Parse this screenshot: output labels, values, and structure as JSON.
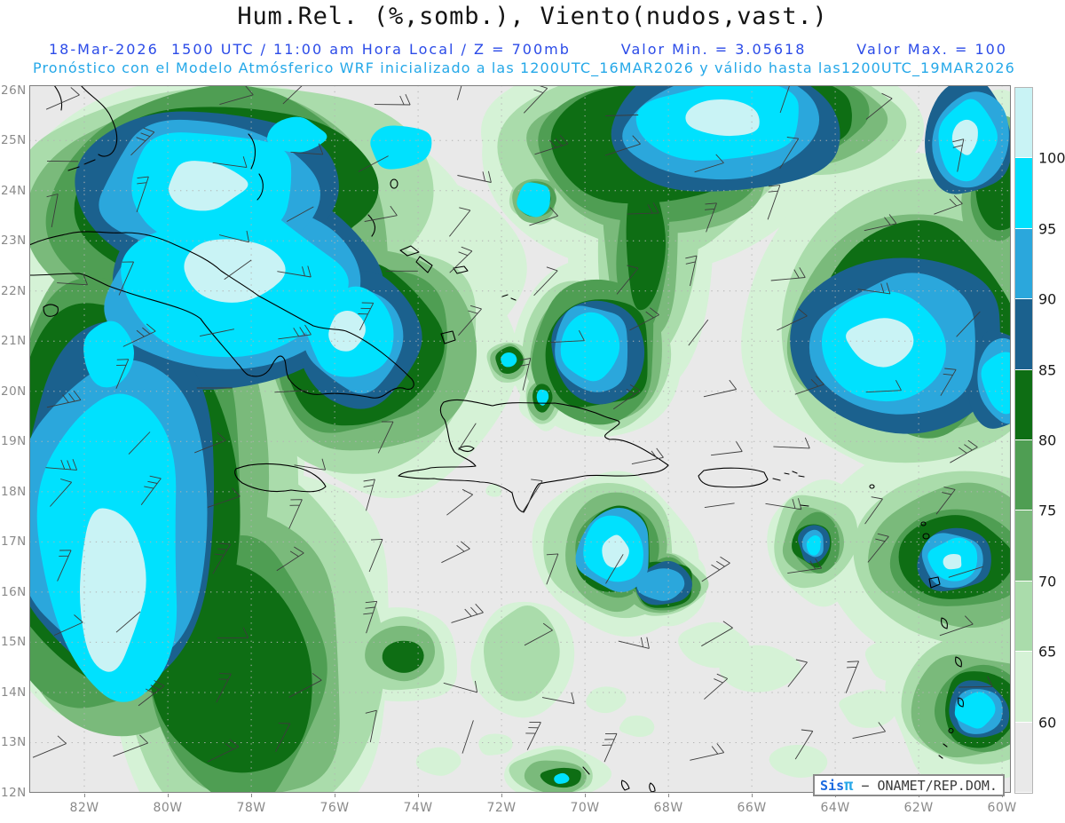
{
  "header": {
    "title": "Hum.Rel. (%,somb.), Viento(nudos,vast.)",
    "valid_line": {
      "datetime": "18-Mar-2026  1500 UTC / 11:00 am Hora Local / Z = 700mb",
      "valor_min": "Valor Min. = 3.05618",
      "valor_max": "Valor Max. = 100"
    },
    "model_line": {
      "text": "Pronóstico con el Modelo Atmósferico WRF inicializado a las 1200UTC_16MAR2026 y válido hasta las",
      "valid_until": "1200UTC_19MAR2026"
    }
  },
  "watermark": {
    "sis": "Sis",
    "pi": "π",
    "rest": " − ONAMET/REP.DOM."
  },
  "colors": {
    "title_text": "#141414",
    "valid_line": "#2b4be8",
    "model_line": "#25a8e8",
    "axis_label": "#8a8a8a",
    "map_background": "#e9e9e9",
    "coastline": "#000000",
    "wind_barb": "#3c3c3c",
    "watermark_sis": "#1a6ae0",
    "watermark_pi": "#29a8e8",
    "watermark_text": "#3a3a3a"
  },
  "chart_data": {
    "type": "heatmap",
    "title": "Hum.Rel. (%,somb.), Viento(nudos,vast.)",
    "field": "Relative humidity (%) shaded, wind barbs (knots)",
    "level": "700mb",
    "valid_datetime": "18-Mar-2026 1500 UTC",
    "local_time": "11:00 am Hora Local",
    "value_min": 3.05618,
    "value_max": 100,
    "model": "WRF",
    "initialized": "1200UTC_16MAR2026",
    "valid_until": "1200UTC_19MAR2026",
    "units": {
      "shading": "%",
      "wind": "nudos"
    },
    "grid": "dotted",
    "legend_position": "right",
    "colorbar": {
      "note": "labels mark boundaries between segments, listed top to bottom",
      "labels": [
        "100",
        "95",
        "90",
        "85",
        "80",
        "75",
        "70",
        "65",
        "60"
      ],
      "colors": [
        "#c9f3f5",
        "#00e1fe",
        "#2ba7dc",
        "#1b618e",
        "#0e6e14",
        "#4f9e53",
        "#7aba7b",
        "#aadcab",
        "#d5f2d6",
        "#e9e9e9"
      ]
    },
    "x_axis": {
      "labels": [
        "82W",
        "80W",
        "78W",
        "76W",
        "74W",
        "72W",
        "70W",
        "68W",
        "66W",
        "64W",
        "62W",
        "60W"
      ],
      "range_deg_west": [
        83.32,
        59.79
      ]
    },
    "y_axis": {
      "labels": [
        "26N",
        "25N",
        "24N",
        "23N",
        "22N",
        "21N",
        "20N",
        "19N",
        "18N",
        "17N",
        "16N",
        "15N",
        "14N",
        "13N",
        "12N"
      ],
      "range_deg_north": [
        12.0,
        26.1
      ]
    }
  }
}
